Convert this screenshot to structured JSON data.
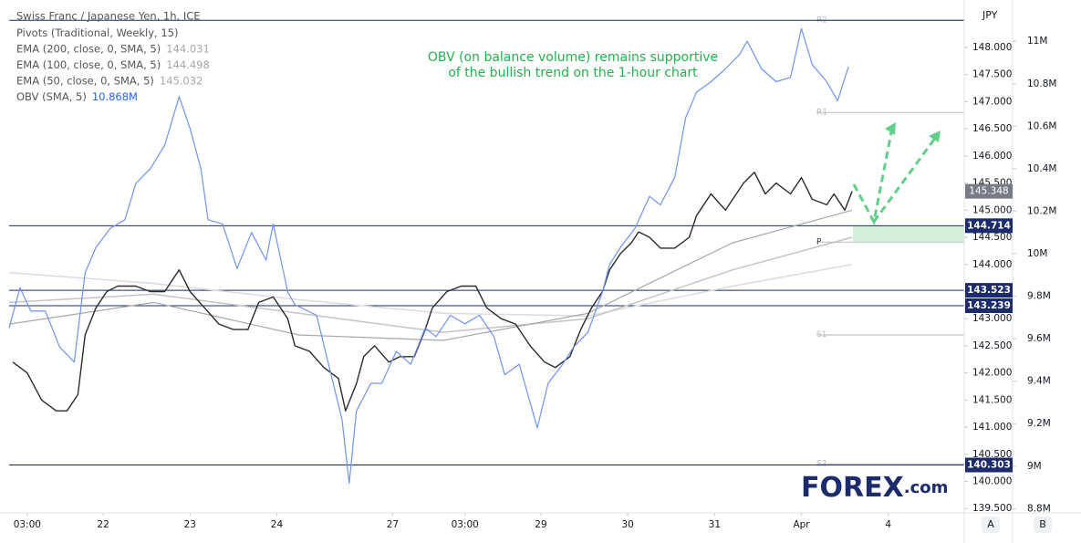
{
  "chart_data": {
    "type": "line",
    "title": "Swiss Franc / Japanese Yen, 1h, ICE",
    "unit": "JPY",
    "indicators": [
      {
        "name": "Pivots (Traditional, Weekly, 15)"
      },
      {
        "name": "EMA (200, close, 0, SMA, 5)",
        "value": 144.031,
        "color": "#a8a8a8"
      },
      {
        "name": "EMA (100, close, 0, SMA, 5)",
        "value": 144.498,
        "color": "#a8a8a8"
      },
      {
        "name": "EMA (50, close, 0, SMA, 5)",
        "value": 145.032,
        "color": "#a8a8a8"
      },
      {
        "name": "OBV (SMA, 5)",
        "value": 10.868,
        "value_label": "10.868M",
        "color": "#2962ff"
      }
    ],
    "annotation": [
      "OBV (on balance volume) remains supportive",
      "of the bullish trend on the 1-hour chart"
    ],
    "annotation_color": "#22b14c",
    "xlim": [
      0,
      264
    ],
    "xticks": [
      {
        "value": 5,
        "label": "03:00"
      },
      {
        "value": 26,
        "label": "22"
      },
      {
        "value": 50,
        "label": "23"
      },
      {
        "value": 74,
        "label": "24"
      },
      {
        "value": 106,
        "label": "27"
      },
      {
        "value": 126,
        "label": "03:00"
      },
      {
        "value": 147,
        "label": "29"
      },
      {
        "value": 171,
        "label": "30"
      },
      {
        "value": 195,
        "label": "31"
      },
      {
        "value": 219,
        "label": "Apr"
      },
      {
        "value": 243,
        "label": "4"
      }
    ],
    "ylim": [
      139.42,
      148.74
    ],
    "yticks": [
      {
        "value": 139.5,
        "label": "139.500"
      },
      {
        "value": 140,
        "label": "140.000"
      },
      {
        "value": 140.5,
        "label": "140.500"
      },
      {
        "value": 141,
        "label": "141.000"
      },
      {
        "value": 141.5,
        "label": "141.500"
      },
      {
        "value": 142,
        "label": "142.000"
      },
      {
        "value": 142.5,
        "label": "142.500"
      },
      {
        "value": 143,
        "label": "143.000"
      },
      {
        "value": 143.5,
        "label": "143.500"
      },
      {
        "value": 144,
        "label": "144.000"
      },
      {
        "value": 144.5,
        "label": "144.500"
      },
      {
        "value": 145,
        "label": "145.000"
      },
      {
        "value": 145.5,
        "label": "145.500"
      },
      {
        "value": 146,
        "label": "146.000"
      },
      {
        "value": 146.5,
        "label": "146.500"
      },
      {
        "value": 147,
        "label": "147.000"
      },
      {
        "value": 147.5,
        "label": "147.500"
      },
      {
        "value": 148,
        "label": "148.000"
      }
    ],
    "y2lim": [
      8.78,
      11.16
    ],
    "y2ticks": [
      {
        "value": 8.8,
        "label": "8.8M"
      },
      {
        "value": 9,
        "label": "9M"
      },
      {
        "value": 9.2,
        "label": "9.2M"
      },
      {
        "value": 9.4,
        "label": "9.4M"
      },
      {
        "value": 9.6,
        "label": "9.6M"
      },
      {
        "value": 9.8,
        "label": "9.8M"
      },
      {
        "value": 10,
        "label": "10M"
      },
      {
        "value": 10.2,
        "label": "10.2M"
      },
      {
        "value": 10.4,
        "label": "10.4M"
      },
      {
        "value": 10.6,
        "label": "10.6M"
      },
      {
        "value": 10.8,
        "label": "10.8M"
      },
      {
        "value": 11,
        "label": "11M"
      }
    ],
    "grid": false,
    "series": [
      {
        "color": "#dcdcdc",
        "width": 1.5,
        "x": [
          0,
          40,
          80,
          120,
          160,
          200,
          233
        ],
        "values": [
          143.85,
          143.65,
          143.35,
          143.1,
          143.05,
          143.6,
          144.0
        ]
      },
      {
        "color": "#c4c4c4",
        "width": 1.5,
        "x": [
          0,
          40,
          80,
          120,
          160,
          200,
          233
        ],
        "values": [
          143.3,
          143.45,
          143.1,
          142.75,
          143.0,
          143.9,
          144.5
        ]
      },
      {
        "color": "#a8a8a8",
        "width": 1.2,
        "x": [
          0,
          40,
          80,
          120,
          160,
          200,
          233
        ],
        "values": [
          142.9,
          143.3,
          142.7,
          142.6,
          143.1,
          144.4,
          145.0
        ]
      },
      {
        "color": "#2b2b2b",
        "width": 1.4,
        "x": [
          1,
          5,
          9,
          13,
          16,
          19,
          21,
          24,
          27,
          30,
          35,
          39,
          43,
          47,
          50,
          54,
          58,
          62,
          66,
          69,
          73,
          77,
          79,
          83,
          87,
          91,
          93,
          96,
          98,
          101,
          105,
          108,
          112,
          115,
          117,
          121,
          125,
          129,
          132,
          136,
          140,
          144,
          148,
          151,
          155,
          158,
          161,
          164,
          166,
          169,
          172,
          174,
          177,
          180,
          184,
          188,
          190,
          194,
          198,
          200,
          203,
          206,
          209,
          212,
          216,
          219,
          222,
          226,
          228,
          231,
          233
        ],
        "values": [
          142.2,
          142.0,
          141.5,
          141.3,
          141.3,
          141.6,
          142.7,
          143.2,
          143.5,
          143.6,
          143.6,
          143.5,
          143.5,
          143.9,
          143.5,
          143.2,
          142.9,
          142.8,
          142.8,
          143.3,
          143.4,
          143.0,
          142.5,
          142.4,
          142.1,
          141.9,
          141.3,
          141.8,
          142.3,
          142.5,
          142.2,
          142.3,
          142.3,
          142.8,
          143.2,
          143.5,
          143.6,
          143.6,
          143.2,
          143.0,
          142.9,
          142.5,
          142.2,
          142.1,
          142.3,
          142.8,
          143.2,
          143.5,
          143.9,
          144.2,
          144.4,
          144.6,
          144.5,
          144.3,
          144.3,
          144.5,
          144.9,
          145.3,
          145.0,
          145.2,
          145.5,
          145.7,
          145.3,
          145.5,
          145.3,
          145.6,
          145.2,
          145.1,
          145.3,
          145.0,
          145.35
        ]
      },
      {
        "color": "#6f93f0",
        "width": 1.2,
        "axis": "y2",
        "x": [
          0,
          3,
          6,
          10,
          14,
          18,
          21,
          24,
          28,
          32,
          35,
          39,
          43,
          47,
          50,
          53,
          55,
          59,
          63,
          67,
          71,
          73,
          77,
          79,
          85,
          88,
          92,
          94,
          96,
          100,
          103,
          107,
          111,
          115,
          118,
          122,
          126,
          130,
          134,
          137,
          141,
          146,
          149,
          153,
          156,
          160,
          164,
          166,
          169,
          173,
          177,
          180,
          184,
          187,
          190,
          194,
          198,
          202,
          204,
          208,
          212,
          216,
          219,
          222,
          226,
          229,
          232
        ],
        "values": [
          9.65,
          9.84,
          9.73,
          9.73,
          9.56,
          9.49,
          9.91,
          10.03,
          10.12,
          10.16,
          10.33,
          10.4,
          10.51,
          10.74,
          10.59,
          10.4,
          10.16,
          10.14,
          9.93,
          10.1,
          9.97,
          10.14,
          9.82,
          9.76,
          9.71,
          9.5,
          9.22,
          8.92,
          9.26,
          9.39,
          9.39,
          9.54,
          9.48,
          9.65,
          9.61,
          9.71,
          9.67,
          9.71,
          9.61,
          9.43,
          9.48,
          9.18,
          9.39,
          9.48,
          9.56,
          9.63,
          9.82,
          9.95,
          10.03,
          10.12,
          10.27,
          10.23,
          10.36,
          10.64,
          10.76,
          10.81,
          10.87,
          10.94,
          11.0,
          10.87,
          10.81,
          10.83,
          11.06,
          10.89,
          10.81,
          10.72,
          10.88
        ]
      }
    ],
    "pivots": [
      {
        "label": "R2",
        "value": 148.5
      },
      {
        "label": "R1",
        "value": 146.8
      },
      {
        "label": "P",
        "value": 144.41
      },
      {
        "label": "S1",
        "value": 142.7
      },
      {
        "label": "S2",
        "value": 140.32
      }
    ],
    "levels": [
      148.5,
      144.714,
      143.523,
      143.239,
      140.303
    ],
    "level_labels": [
      144.714,
      143.523,
      143.239,
      140.303
    ],
    "level_color": "#1c2b6b",
    "last_price": 145.348,
    "support_zone": {
      "from": 144.41,
      "to": 144.714,
      "color": "#d4f0dc"
    },
    "logo": {
      "main": "FOREX",
      "suffix": ".com"
    },
    "buttons": [
      "A",
      "B"
    ]
  }
}
